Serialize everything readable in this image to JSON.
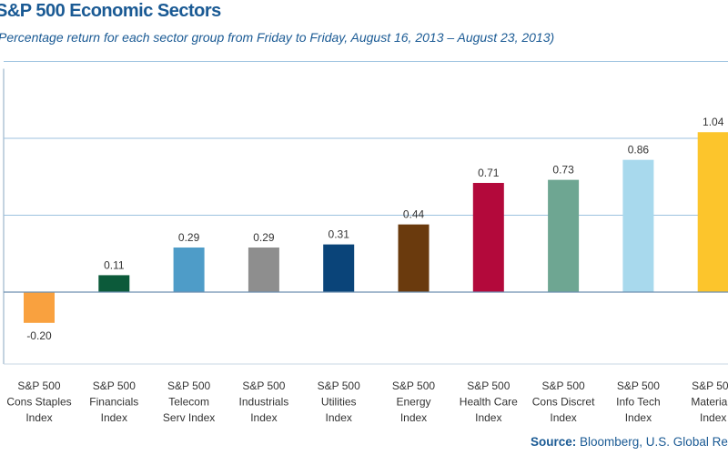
{
  "chart_data": {
    "type": "bar",
    "title": "S&P 500 Economic Sectors",
    "subtitle": "Percentage return for each sector group from Friday to Friday, August 16, 2013 – August 23, 2013)",
    "categories": [
      [
        "S&P 500",
        "Cons Staples",
        "Index"
      ],
      [
        "S&P 500",
        "Financials",
        "Index"
      ],
      [
        "S&P 500",
        "Telecom",
        "Serv Index"
      ],
      [
        "S&P 500",
        "Industrials",
        "Index"
      ],
      [
        "S&P 500",
        "Utilities",
        "Index"
      ],
      [
        "S&P 500",
        "Energy",
        "Index"
      ],
      [
        "S&P 500",
        "Health Care",
        "Index"
      ],
      [
        "S&P 500",
        "Cons Discret",
        "Index"
      ],
      [
        "S&P 500",
        "Info Tech",
        "Index"
      ],
      [
        "S&P 500",
        "Materials",
        "Index"
      ]
    ],
    "values": [
      -0.2,
      0.11,
      0.29,
      0.29,
      0.31,
      0.44,
      0.71,
      0.73,
      0.86,
      1.04
    ],
    "value_labels": [
      "-0.20",
      "0.11",
      "0.29",
      "0.29",
      "0.31",
      "0.44",
      "0.71",
      "0.73",
      "0.86",
      "1.04"
    ],
    "colors": [
      "#f9a13f",
      "#0c5a3a",
      "#4e9cc8",
      "#8e8e8e",
      "#0a4479",
      "#6a3a0d",
      "#b3093b",
      "#6ea692",
      "#a8d9ed",
      "#fcc52c"
    ],
    "ylim": [
      -0.4,
      1.5
    ],
    "gridlines": [
      0.5,
      1.0,
      1.5
    ],
    "xlabel": "",
    "ylabel": "",
    "legend": "none"
  },
  "source": {
    "label": "Source:",
    "text": " Bloomberg, U.S. Global Research"
  }
}
